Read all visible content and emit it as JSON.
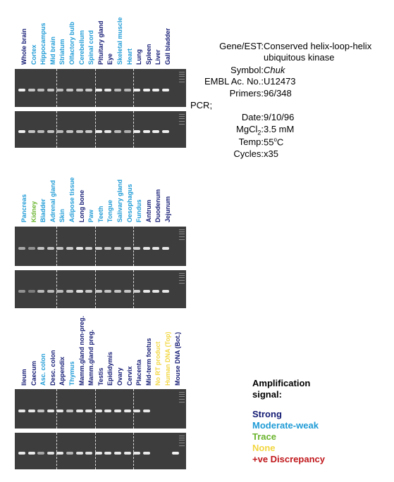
{
  "colors": {
    "strong": "#131a73",
    "moderate_weak": "#1f9bd6",
    "trace": "#6ab42d",
    "none": "#f2d640",
    "discrepancy": "#c0171b",
    "gel": "#3d3d3d"
  },
  "info": {
    "gene_key": "Gene/EST:",
    "gene_val_1": "Conserved helix-loop-helix",
    "gene_val_2": "ubiquitous kinase",
    "symbol_key": "Symbol:",
    "symbol_val": "Chuk",
    "embl_key": "EMBL Ac. No.:",
    "embl_val": "U12473",
    "primers_key": "Primers:",
    "primers_val": "96/348",
    "pcr_key": "PCR;",
    "date_key": "Date:",
    "date_val": "9/10/96",
    "mgcl_key_main": "MgCl",
    "mgcl_key_sub": "2",
    "mgcl_key_colon": ":",
    "mgcl_val": "3.5 mM",
    "temp_key": "Temp:",
    "temp_val_num": "55",
    "temp_val_sup": "o",
    "temp_val_unit": "C",
    "cycles_key": "Cycles:",
    "cycles_val": "x35"
  },
  "legend": {
    "title_1": "Amplification",
    "title_2": "signal:",
    "items": [
      {
        "label": "Strong",
        "color": "#131a73"
      },
      {
        "label": "Moderate-weak",
        "color": "#1f9bd6"
      },
      {
        "label": "Trace",
        "color": "#6ab42d"
      },
      {
        "label": "None",
        "color": "#f2d640"
      },
      {
        "label": "+ve Discrepancy",
        "color": "#c0171b"
      }
    ]
  },
  "panels": [
    {
      "lanes": [
        {
          "label": "Whole brain",
          "signal": "strong",
          "top": 0.9,
          "bottom": 0.9
        },
        {
          "label": "Cortex",
          "signal": "moderate_weak",
          "top": 0.6,
          "bottom": 0.6
        },
        {
          "label": "Hippocampus",
          "signal": "moderate_weak",
          "top": 0.55,
          "bottom": 0.55
        },
        {
          "label": "Mid brain",
          "signal": "moderate_weak",
          "top": 0.6,
          "bottom": 0.6
        },
        {
          "label": "Striatum",
          "signal": "moderate_weak",
          "top": 0.55,
          "bottom": 0.55
        },
        {
          "label": "Olfactory bulb",
          "signal": "moderate_weak",
          "top": 0.6,
          "bottom": 0.6
        },
        {
          "label": "Cerebellum",
          "signal": "moderate_weak",
          "top": 0.6,
          "bottom": 0.6
        },
        {
          "label": "Spinal cord",
          "signal": "moderate_weak",
          "top": 0.65,
          "bottom": 0.65
        },
        {
          "label": "Pituitary gland",
          "signal": "strong",
          "top": 0.9,
          "bottom": 0.9
        },
        {
          "label": "Eye",
          "signal": "strong",
          "top": 0.85,
          "bottom": 0.85
        },
        {
          "label": "Skeletal muscle",
          "signal": "moderate_weak",
          "top": 0.55,
          "bottom": 0.55
        },
        {
          "label": "Heart",
          "signal": "moderate_weak",
          "top": 0.5,
          "bottom": 0.45
        },
        {
          "label": "Lung",
          "signal": "strong",
          "top": 0.9,
          "bottom": 0.9
        },
        {
          "label": "Spleen",
          "signal": "strong",
          "top": 0.9,
          "bottom": 0.9
        },
        {
          "label": "Liver",
          "signal": "strong",
          "top": 0.9,
          "bottom": 0.9
        },
        {
          "label": "Gall bladder",
          "signal": "strong",
          "top": 0.9,
          "bottom": 0.9
        }
      ]
    },
    {
      "lanes": [
        {
          "label": "Pancreas",
          "signal": "moderate_weak",
          "top": 0.4,
          "bottom": 0.25
        },
        {
          "label": "Kidney",
          "signal": "trace",
          "top": 0.25,
          "bottom": 0.1
        },
        {
          "label": "Bladder",
          "signal": "moderate_weak",
          "top": 0.6,
          "bottom": 0.55
        },
        {
          "label": "Adrenal gland",
          "signal": "moderate_weak",
          "top": 0.6,
          "bottom": 0.55
        },
        {
          "label": "Skin",
          "signal": "moderate_weak",
          "top": 0.6,
          "bottom": 0.55
        },
        {
          "label": "Adipose tissue",
          "signal": "moderate_weak",
          "top": 0.65,
          "bottom": 0.6
        },
        {
          "label": "Long bone",
          "signal": "strong",
          "top": 0.85,
          "bottom": 0.8
        },
        {
          "label": "Paw",
          "signal": "moderate_weak",
          "top": 0.7,
          "bottom": 0.65
        },
        {
          "label": "Teeth",
          "signal": "moderate_weak",
          "top": 0.7,
          "bottom": 0.65
        },
        {
          "label": "Tongue",
          "signal": "moderate_weak",
          "top": 0.65,
          "bottom": 0.6
        },
        {
          "label": "Salivary gland",
          "signal": "moderate_weak",
          "top": 0.65,
          "bottom": 0.6
        },
        {
          "label": "Oesophagus",
          "signal": "moderate_weak",
          "top": 0.65,
          "bottom": 0.6
        },
        {
          "label": "Fundus",
          "signal": "moderate_weak",
          "top": 0.7,
          "bottom": 0.7
        },
        {
          "label": "Antrum",
          "signal": "strong",
          "top": 0.85,
          "bottom": 0.85
        },
        {
          "label": "Duodenum",
          "signal": "strong",
          "top": 0.85,
          "bottom": 0.85
        },
        {
          "label": "Jejunum",
          "signal": "strong",
          "top": 0.85,
          "bottom": 0.85
        }
      ]
    },
    {
      "lanes": [
        {
          "label": "Ileum",
          "signal": "strong",
          "top": 0.85,
          "bottom": 0.85
        },
        {
          "label": "Caecum",
          "signal": "strong",
          "top": 0.85,
          "bottom": 0.85
        },
        {
          "label": "Asc. colon",
          "signal": "moderate_weak",
          "top": 0.6,
          "bottom": 0.4
        },
        {
          "label": "Desc. colon",
          "signal": "strong",
          "top": 0.85,
          "bottom": 0.8
        },
        {
          "label": "Appendix",
          "signal": "strong",
          "top": 0.85,
          "bottom": 0.85
        },
        {
          "label": "Thymus",
          "signal": "moderate_weak",
          "top": 0.6,
          "bottom": 0.5
        },
        {
          "label": "Mamm.gland non-preg.",
          "signal": "strong",
          "top": 0.85,
          "bottom": 0.8
        },
        {
          "label": "Mamm.gland preg.",
          "signal": "strong",
          "top": 0.85,
          "bottom": 0.8
        },
        {
          "label": "Testis",
          "signal": "strong",
          "top": 0.85,
          "bottom": 0.85
        },
        {
          "label": "Epididymis",
          "signal": "strong",
          "top": 0.85,
          "bottom": 0.85
        },
        {
          "label": "Ovary",
          "signal": "strong",
          "top": 0.85,
          "bottom": 0.85
        },
        {
          "label": "Cervix",
          "signal": "strong",
          "top": 0.85,
          "bottom": 0.85
        },
        {
          "label": "Placenta",
          "signal": "strong",
          "top": 0.85,
          "bottom": 0.85
        },
        {
          "label": "Mid-term foetus",
          "signal": "strong",
          "top": 0.85,
          "bottom": 0.85
        },
        {
          "label": "No RT product",
          "signal": "none",
          "top": 0,
          "bottom": 0
        },
        {
          "label": "Human DNA (Top)",
          "signal": "none",
          "top": 0,
          "bottom": 0
        },
        {
          "label": "Mouse DNA (Bot.)",
          "signal": "strong",
          "top": 0,
          "bottom": 0.9
        }
      ]
    }
  ]
}
